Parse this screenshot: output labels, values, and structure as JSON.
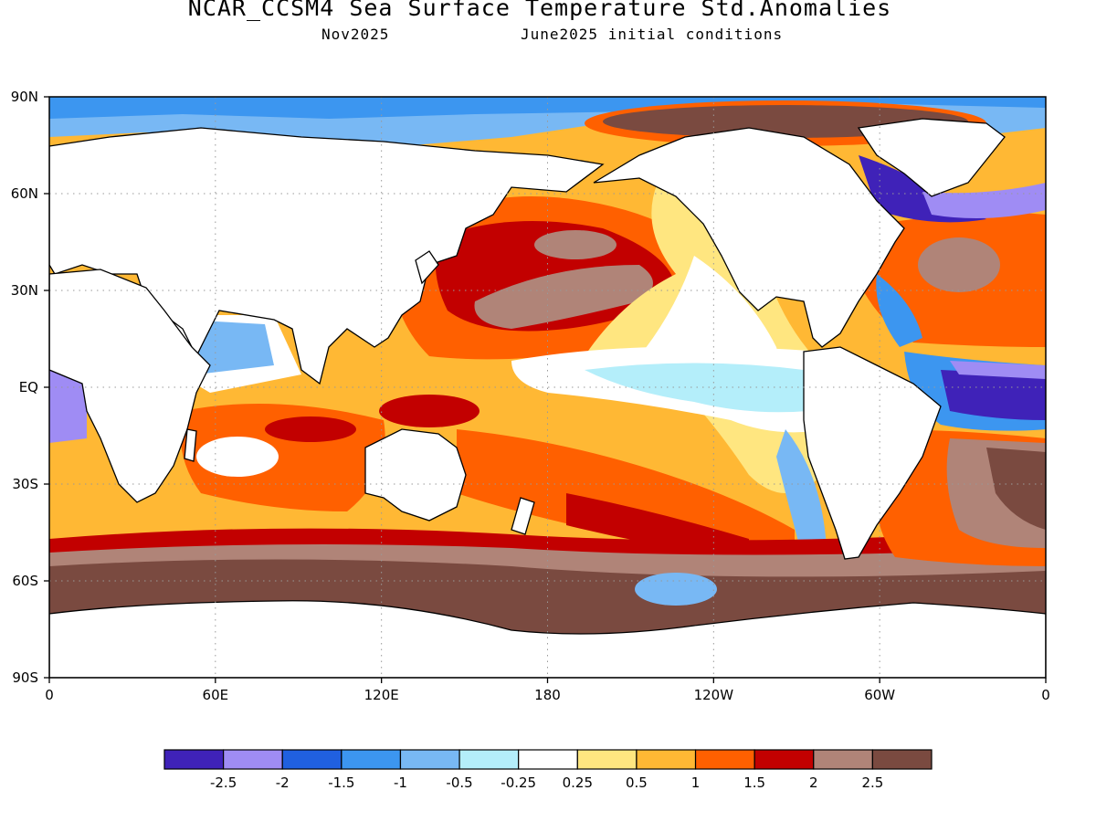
{
  "title": "NCAR_CCSM4 Sea Surface Temperature Std.Anomalies",
  "subtitle_left": "Nov2025",
  "subtitle_right": "June2025 initial conditions",
  "map": {
    "lat_ticks": [
      "90N",
      "60N",
      "30N",
      "EQ",
      "30S",
      "60S",
      "90S"
    ],
    "lon_ticks": [
      "0",
      "60E",
      "120E",
      "180",
      "120W",
      "60W",
      "0"
    ],
    "gridlines": "dotted"
  },
  "colorbar": {
    "levels": [
      "-2.5",
      "-2",
      "-1.5",
      "-1",
      "-0.5",
      "-0.25",
      "0.25",
      "0.5",
      "1",
      "1.5",
      "2",
      "2.5"
    ],
    "colors": [
      "#3f22b8",
      "#9f8cf4",
      "#2060e0",
      "#3c96f0",
      "#78b8f4",
      "#b4eefa",
      "#ffffff",
      "#ffe680",
      "#ffb834",
      "#ff6000",
      "#c20000",
      "#b08478",
      "#7a4a40"
    ]
  }
}
